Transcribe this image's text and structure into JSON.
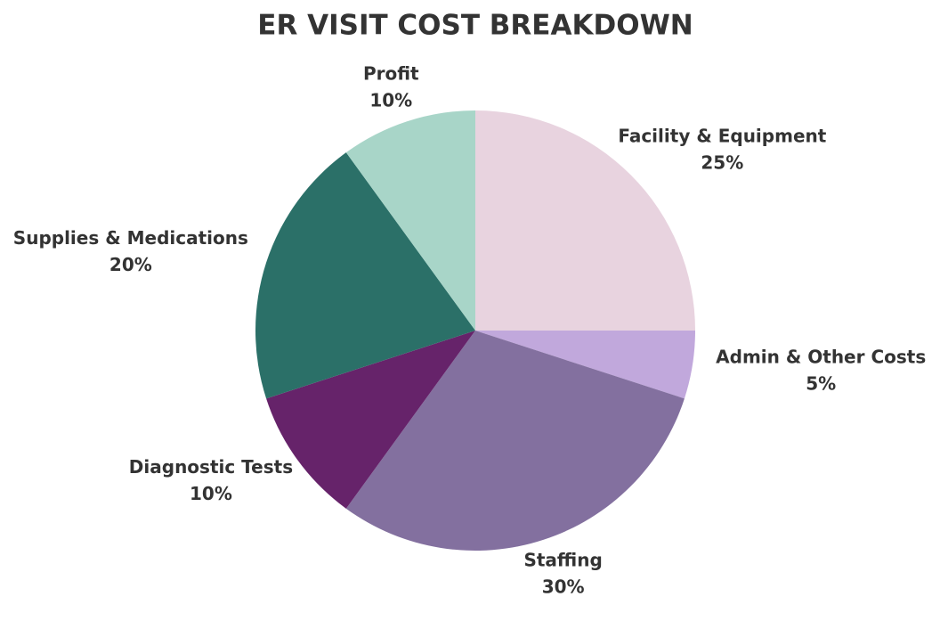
{
  "chart_data": {
    "type": "pie",
    "title": "ER VISIT COST BREAKDOWN",
    "categories": [
      "Facility & Equipment",
      "Admin & Other Costs",
      "Staffing",
      "Diagnostic Tests",
      "Supplies & Medications",
      "Profit"
    ],
    "values": [
      25,
      5,
      30,
      10,
      20,
      10
    ],
    "value_labels": [
      "25%",
      "5%",
      "30%",
      "10%",
      "20%",
      "10%"
    ],
    "colors": [
      "#e8d3df",
      "#c1a8dc",
      "#83709f",
      "#66236a",
      "#2b7068",
      "#a8d5c8"
    ]
  }
}
